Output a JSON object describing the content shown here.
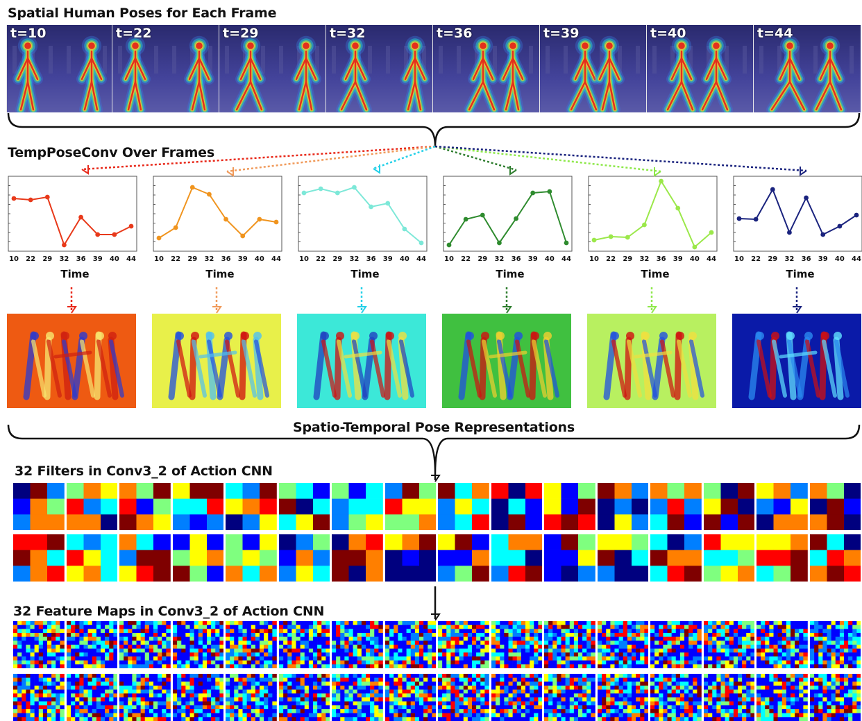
{
  "sections": {
    "spatial_title": "Spatial Human Poses for Each Frame",
    "temporal_title": "TempPoseConv Over Frames",
    "representations_title": "Spatio-Temporal Pose Representations",
    "filters_title": "32 Filters in Conv3_2 of Action CNN",
    "feature_maps_title": "32 Feature Maps in Conv3_2 of Action CNN"
  },
  "frames": [
    {
      "label": "t=10"
    },
    {
      "label": "t=22"
    },
    {
      "label": "t=29"
    },
    {
      "label": "t=32"
    },
    {
      "label": "t=36"
    },
    {
      "label": "t=39"
    },
    {
      "label": "t=40"
    },
    {
      "label": "t=44"
    }
  ],
  "colors": {
    "channels": [
      "#e8391a",
      "#f0941e",
      "#7de8d8",
      "#2e8b2e",
      "#9be84a",
      "#1a237e"
    ],
    "arrows": [
      "#e8291a",
      "#f09a5a",
      "#22d0e8",
      "#2e7d2e",
      "#8ee84a",
      "#1a237e"
    ],
    "frame_bg": "#3d3d8c",
    "jet": [
      "#00007f",
      "#0000ff",
      "#007fff",
      "#00ffff",
      "#7fff7f",
      "#ffff00",
      "#ff7f00",
      "#ff0000",
      "#7f0000"
    ]
  },
  "chart_data": [
    {
      "type": "line",
      "x": [
        10,
        22,
        29,
        32,
        36,
        39,
        40,
        44
      ],
      "y": [
        0.72,
        0.7,
        0.74,
        0.05,
        0.45,
        0.2,
        0.2,
        0.32
      ],
      "xlabel": "Time"
    },
    {
      "type": "line",
      "x": [
        10,
        22,
        29,
        32,
        36,
        39,
        40,
        44
      ],
      "y": [
        0.15,
        0.3,
        0.88,
        0.78,
        0.42,
        0.18,
        0.42,
        0.38
      ],
      "xlabel": "Time"
    },
    {
      "type": "line",
      "x": [
        10,
        22,
        29,
        32,
        36,
        39,
        40,
        44
      ],
      "y": [
        0.8,
        0.86,
        0.8,
        0.88,
        0.6,
        0.65,
        0.28,
        0.08
      ],
      "xlabel": "Time"
    },
    {
      "type": "line",
      "x": [
        10,
        22,
        29,
        32,
        36,
        39,
        40,
        44
      ],
      "y": [
        0.05,
        0.42,
        0.48,
        0.08,
        0.43,
        0.8,
        0.82,
        0.08
      ],
      "xlabel": "Time"
    },
    {
      "type": "line",
      "x": [
        10,
        22,
        29,
        32,
        36,
        39,
        40,
        44
      ],
      "y": [
        0.12,
        0.17,
        0.16,
        0.34,
        0.97,
        0.58,
        0.02,
        0.23
      ],
      "xlabel": "Time"
    },
    {
      "type": "line",
      "x": [
        10,
        22,
        29,
        32,
        36,
        39,
        40,
        44
      ],
      "y": [
        0.43,
        0.42,
        0.85,
        0.23,
        0.73,
        0.2,
        0.32,
        0.48
      ],
      "xlabel": "Time"
    }
  ]
}
